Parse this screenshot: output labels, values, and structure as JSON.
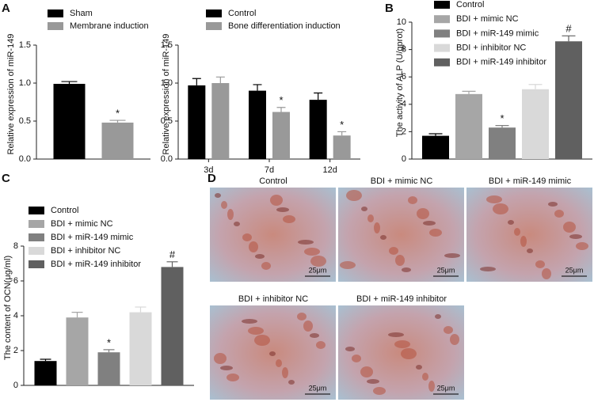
{
  "chart_data": [
    {
      "type": "bar",
      "ylabel": "Relative expression of miR-149",
      "categories": [
        null
      ],
      "series": [
        {
          "name": "Sham",
          "color": "#000000",
          "values": [
            0.99
          ],
          "errors": [
            0.03
          ],
          "annotations": [
            null
          ]
        },
        {
          "name": "Membrane induction",
          "color": "#999999",
          "values": [
            0.48
          ],
          "errors": [
            0.03
          ],
          "annotations": [
            "*"
          ]
        }
      ],
      "ylim": [
        0,
        1.5
      ],
      "yticks": [
        {
          "value": 0,
          "label": "0.0"
        },
        {
          "value": 0.5,
          "label": "0.5"
        },
        {
          "value": 1,
          "label": "1.0"
        },
        {
          "value": 1.5,
          "label": "1.5"
        }
      ]
    },
    {
      "type": "bar",
      "ylabel": "Relative expression of miR-149",
      "categories": [
        "3d",
        "7d",
        "12d"
      ],
      "series": [
        {
          "name": "Control",
          "color": "#000000",
          "values": [
            0.97,
            0.9,
            0.78
          ],
          "errors": [
            0.09,
            0.08,
            0.09
          ],
          "annotations": [
            null,
            null,
            null
          ]
        },
        {
          "name": "Bone differentiation induction",
          "color": "#999999",
          "values": [
            1.0,
            0.62,
            0.31
          ],
          "errors": [
            0.08,
            0.06,
            0.05
          ],
          "annotations": [
            null,
            "*",
            "*"
          ]
        }
      ],
      "ylim": [
        0,
        1.5
      ],
      "yticks": [
        {
          "value": 0,
          "label": "0.0"
        },
        {
          "value": 0.5,
          "label": "0.5"
        },
        {
          "value": 1,
          "label": "1.0"
        },
        {
          "value": 1.5,
          "label": "1.5"
        }
      ]
    },
    {
      "type": "bar",
      "ylabel": "The activity of ALP (U/gprot)",
      "categories": [
        null
      ],
      "series": [
        {
          "name": "Control",
          "color": "#000000",
          "values": [
            1.7
          ],
          "errors": [
            0.15
          ],
          "annotations": [
            null
          ]
        },
        {
          "name": "BDI + mimic NC",
          "color": "#a6a6a6",
          "values": [
            4.75
          ],
          "errors": [
            0.2
          ],
          "annotations": [
            null
          ]
        },
        {
          "name": "BDI + miR-149 mimic",
          "color": "#808080",
          "values": [
            2.3
          ],
          "errors": [
            0.15
          ],
          "annotations": [
            "*"
          ]
        },
        {
          "name": "BDI + inhibitor NC",
          "color": "#d9d9d9",
          "values": [
            5.1
          ],
          "errors": [
            0.35
          ],
          "annotations": [
            null
          ]
        },
        {
          "name": "BDI + miR-149 inhibitor",
          "color": "#606060",
          "values": [
            8.6
          ],
          "errors": [
            0.4
          ],
          "annotations": [
            "#"
          ]
        }
      ],
      "ylim": [
        0,
        10
      ],
      "yticks": [
        0,
        2,
        4,
        6,
        8,
        10
      ]
    },
    {
      "type": "bar",
      "ylabel": "The content of OCN(μg/ml)",
      "categories": [
        null
      ],
      "series": [
        {
          "name": "Control",
          "color": "#000000",
          "values": [
            1.4
          ],
          "errors": [
            0.1
          ],
          "annotations": [
            null
          ]
        },
        {
          "name": "BDI + mimic NC",
          "color": "#a6a6a6",
          "values": [
            3.9
          ],
          "errors": [
            0.3
          ],
          "annotations": [
            null
          ]
        },
        {
          "name": "BDI + miR-149 mimic",
          "color": "#808080",
          "values": [
            1.9
          ],
          "errors": [
            0.15
          ],
          "annotations": [
            "*"
          ]
        },
        {
          "name": "BDI + inhibitor NC",
          "color": "#d9d9d9",
          "values": [
            4.2
          ],
          "errors": [
            0.3
          ],
          "annotations": [
            null
          ]
        },
        {
          "name": "BDI + miR-149 inhibitor",
          "color": "#606060",
          "values": [
            6.8
          ],
          "errors": [
            0.3
          ],
          "annotations": [
            "#"
          ]
        }
      ],
      "ylim": [
        0,
        8
      ],
      "yticks": [
        0,
        2,
        4,
        6,
        8
      ]
    }
  ],
  "figure": {
    "panel_labels": [
      "A",
      "B",
      "C",
      "D"
    ],
    "micrographs": {
      "titles": [
        "Control",
        "BDI + mimic NC",
        "BDI + miR-149 mimic",
        "BDI + inhibitor NC",
        "BDI + miR-149 inhibitor"
      ],
      "scale_label": "25μm"
    }
  }
}
